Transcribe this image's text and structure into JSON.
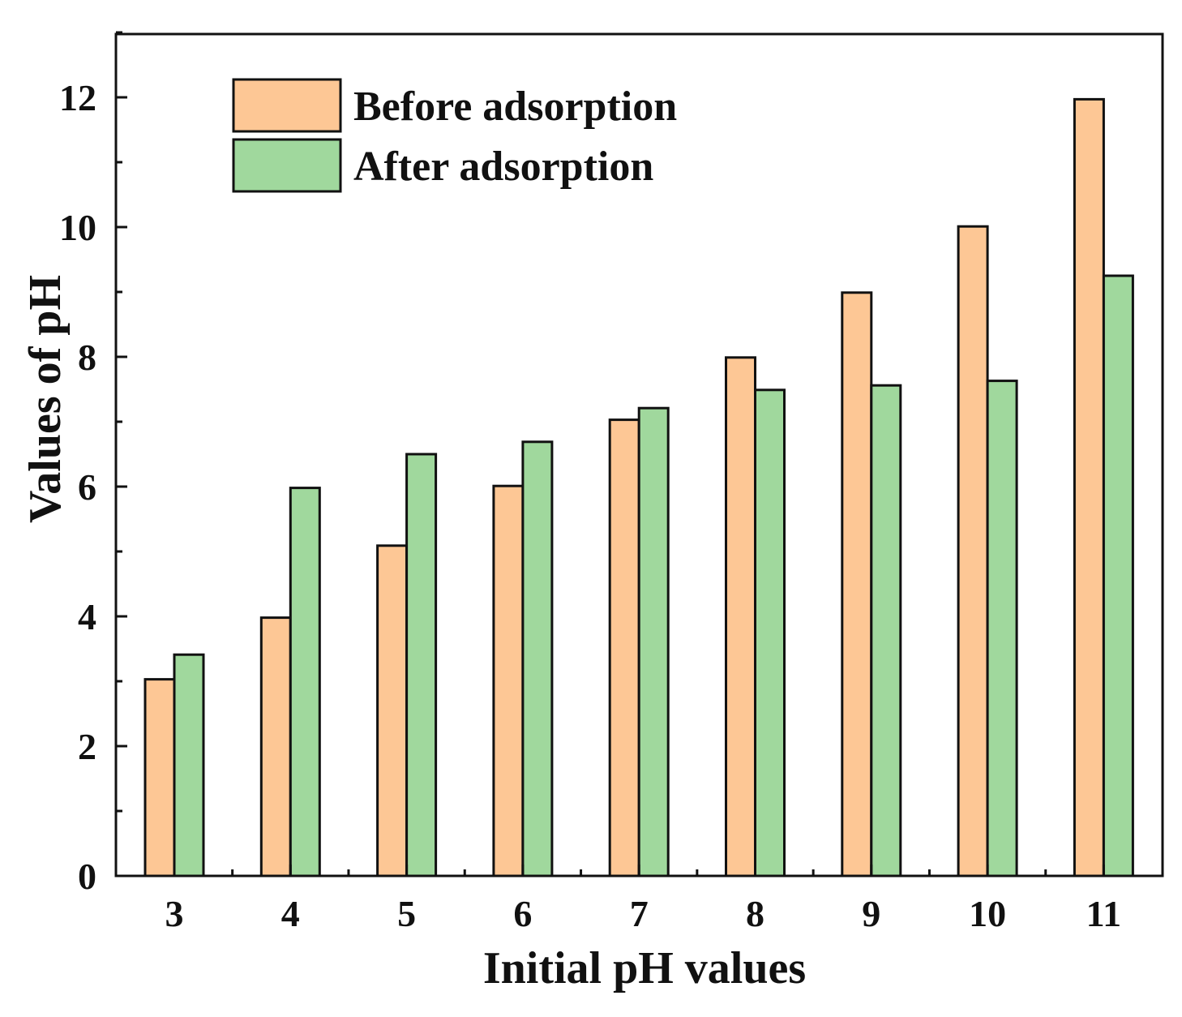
{
  "chart_data": {
    "type": "bar",
    "xlabel": "Initial pH values",
    "ylabel": "Values of pH",
    "categories": [
      "3",
      "4",
      "5",
      "6",
      "7",
      "8",
      "9",
      "10",
      "11"
    ],
    "series": [
      {
        "name": "Before adsorption",
        "color": "#FDC795",
        "values": [
          3.03,
          3.98,
          5.09,
          6.01,
          7.03,
          7.99,
          8.99,
          10.01,
          11.97
        ]
      },
      {
        "name": "After adsorption",
        "color": "#A0D89D",
        "values": [
          3.41,
          5.98,
          6.5,
          6.69,
          7.21,
          7.49,
          7.56,
          7.63,
          9.25
        ]
      }
    ],
    "ylim": [
      0,
      13
    ],
    "yticks": [
      0,
      2,
      4,
      6,
      8,
      10,
      12
    ],
    "grid": false,
    "legend_position": "top-left"
  }
}
